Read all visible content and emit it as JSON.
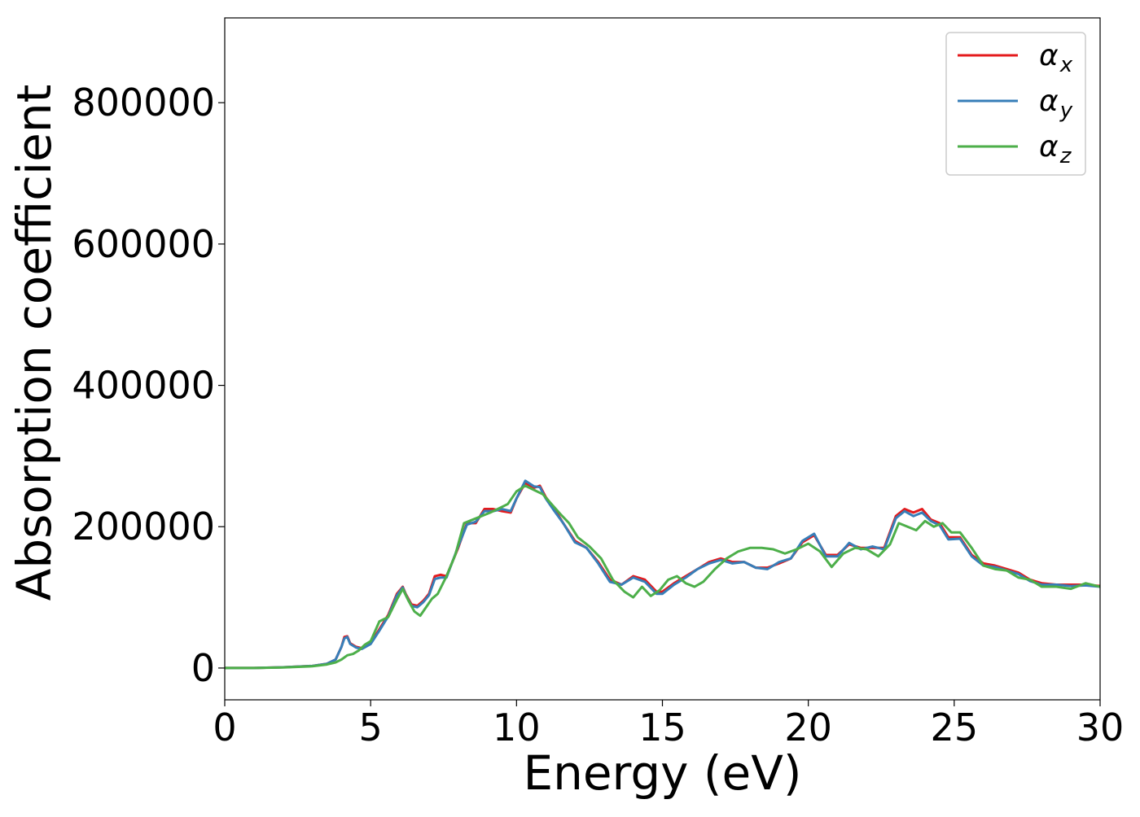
{
  "chart_data": {
    "type": "line",
    "title": "",
    "xlabel": "Energy (eV)",
    "ylabel": "Absorption coefficient",
    "xlim": [
      0,
      30
    ],
    "ylim": [
      -45000,
      920000
    ],
    "xticks": [
      0,
      5,
      10,
      15,
      20,
      25,
      30
    ],
    "xtick_labels": [
      "0",
      "5",
      "10",
      "15",
      "20",
      "25",
      "30"
    ],
    "yticks": [
      0,
      200000,
      400000,
      600000,
      800000
    ],
    "ytick_labels": [
      "0",
      "200000",
      "400000",
      "600000",
      "800000"
    ],
    "grid": false,
    "legend_position": "top-right",
    "series": [
      {
        "name": "α_x",
        "label_main": "α",
        "label_sub": "x",
        "color": "#e41a1c",
        "x": [
          0,
          1,
          2,
          3,
          3.5,
          3.8,
          4.0,
          4.1,
          4.2,
          4.3,
          4.5,
          4.7,
          5.0,
          5.3,
          5.6,
          5.9,
          6.1,
          6.2,
          6.4,
          6.6,
          6.8,
          7.0,
          7.2,
          7.4,
          7.6,
          7.8,
          8.0,
          8.3,
          8.6,
          8.9,
          9.2,
          9.5,
          9.8,
          10.0,
          10.3,
          10.6,
          10.8,
          11.0,
          11.3,
          11.6,
          12.0,
          12.4,
          12.8,
          13.2,
          13.6,
          14.0,
          14.4,
          14.8,
          15.0,
          15.4,
          15.8,
          16.2,
          16.6,
          17.0,
          17.4,
          17.8,
          18.2,
          18.6,
          19.0,
          19.4,
          19.8,
          20.2,
          20.6,
          21.0,
          21.4,
          21.8,
          22.2,
          22.6,
          23.0,
          23.3,
          23.6,
          23.9,
          24.2,
          24.5,
          24.8,
          25.2,
          25.6,
          26.0,
          26.4,
          26.8,
          27.2,
          27.6,
          28.0,
          28.5,
          29.0,
          29.5,
          30.0
        ],
        "y": [
          0,
          0,
          1000,
          3000,
          6000,
          12000,
          30000,
          44000,
          45000,
          35000,
          30000,
          28000,
          35000,
          55000,
          75000,
          105000,
          115000,
          105000,
          90000,
          88000,
          95000,
          105000,
          130000,
          132000,
          130000,
          150000,
          170000,
          205000,
          205000,
          225000,
          225000,
          222000,
          220000,
          240000,
          262000,
          255000,
          258000,
          242000,
          225000,
          205000,
          180000,
          170000,
          150000,
          125000,
          118000,
          130000,
          125000,
          108000,
          108000,
          120000,
          130000,
          140000,
          150000,
          155000,
          150000,
          150000,
          142000,
          142000,
          148000,
          155000,
          178000,
          188000,
          160000,
          160000,
          175000,
          170000,
          170000,
          170000,
          215000,
          225000,
          220000,
          225000,
          210000,
          205000,
          185000,
          185000,
          160000,
          148000,
          145000,
          140000,
          135000,
          125000,
          120000,
          118000,
          118000,
          118000,
          116000
        ]
      },
      {
        "name": "α_y",
        "label_main": "α",
        "label_sub": "y",
        "color": "#377eb8",
        "x": [
          0,
          1,
          2,
          3,
          3.5,
          3.8,
          4.0,
          4.1,
          4.2,
          4.3,
          4.5,
          4.7,
          5.0,
          5.3,
          5.6,
          5.9,
          6.1,
          6.2,
          6.4,
          6.6,
          6.8,
          7.0,
          7.2,
          7.4,
          7.6,
          7.8,
          8.0,
          8.3,
          8.6,
          8.9,
          9.2,
          9.5,
          9.8,
          10.0,
          10.3,
          10.6,
          10.8,
          11.0,
          11.3,
          11.6,
          12.0,
          12.4,
          12.8,
          13.2,
          13.6,
          14.0,
          14.4,
          14.8,
          15.0,
          15.4,
          15.8,
          16.2,
          16.6,
          17.0,
          17.4,
          17.8,
          18.2,
          18.6,
          19.0,
          19.4,
          19.8,
          20.2,
          20.6,
          21.0,
          21.4,
          21.8,
          22.2,
          22.6,
          23.0,
          23.3,
          23.6,
          23.9,
          24.2,
          24.5,
          24.8,
          25.2,
          25.6,
          26.0,
          26.4,
          26.8,
          27.2,
          27.6,
          28.0,
          28.5,
          29.0,
          29.5,
          30.0
        ],
        "y": [
          0,
          0,
          1000,
          3000,
          6000,
          12000,
          30000,
          42000,
          44000,
          34000,
          29000,
          27000,
          34000,
          53000,
          73000,
          103000,
          114000,
          104000,
          88000,
          86000,
          93000,
          103000,
          126000,
          128000,
          128000,
          150000,
          172000,
          203000,
          207000,
          222000,
          222000,
          225000,
          222000,
          240000,
          265000,
          257000,
          256000,
          240000,
          222000,
          205000,
          178000,
          170000,
          148000,
          122000,
          118000,
          128000,
          122000,
          105000,
          105000,
          118000,
          128000,
          140000,
          148000,
          153000,
          148000,
          150000,
          142000,
          140000,
          150000,
          155000,
          180000,
          190000,
          158000,
          158000,
          177000,
          168000,
          172000,
          168000,
          212000,
          222000,
          215000,
          220000,
          208000,
          202000,
          182000,
          183000,
          158000,
          145000,
          143000,
          138000,
          133000,
          123000,
          118000,
          118000,
          116000,
          117000,
          115000
        ]
      },
      {
        "name": "α_z",
        "label_main": "α",
        "label_sub": "z",
        "color": "#4daf4a",
        "x": [
          0,
          1,
          2,
          3,
          3.5,
          3.8,
          4.0,
          4.2,
          4.4,
          4.6,
          4.8,
          5.0,
          5.3,
          5.6,
          5.9,
          6.1,
          6.3,
          6.5,
          6.7,
          6.9,
          7.1,
          7.3,
          7.6,
          7.9,
          8.2,
          8.5,
          8.8,
          9.1,
          9.4,
          9.7,
          10.0,
          10.3,
          10.6,
          10.9,
          11.2,
          11.5,
          11.8,
          12.1,
          12.5,
          12.9,
          13.3,
          13.7,
          14.0,
          14.3,
          14.6,
          14.9,
          15.2,
          15.5,
          15.8,
          16.1,
          16.4,
          16.8,
          17.2,
          17.6,
          18.0,
          18.4,
          18.8,
          19.2,
          19.6,
          20.0,
          20.4,
          20.8,
          21.2,
          21.6,
          22.0,
          22.4,
          22.8,
          23.1,
          23.4,
          23.7,
          24.0,
          24.3,
          24.6,
          24.9,
          25.2,
          25.6,
          26.0,
          26.4,
          26.8,
          27.2,
          27.6,
          28.0,
          28.5,
          29.0,
          29.5,
          30.0
        ],
        "y": [
          0,
          0,
          800,
          2500,
          5000,
          8000,
          12000,
          18000,
          20000,
          25000,
          33000,
          38000,
          66000,
          72000,
          97000,
          112000,
          95000,
          80000,
          74000,
          86000,
          98000,
          105000,
          130000,
          160000,
          205000,
          210000,
          215000,
          220000,
          226000,
          232000,
          250000,
          258000,
          252000,
          246000,
          232000,
          218000,
          205000,
          185000,
          172000,
          155000,
          125000,
          108000,
          100000,
          115000,
          102000,
          110000,
          125000,
          130000,
          120000,
          115000,
          122000,
          140000,
          155000,
          165000,
          170000,
          170000,
          168000,
          162000,
          168000,
          176000,
          165000,
          143000,
          162000,
          170000,
          168000,
          158000,
          175000,
          205000,
          200000,
          195000,
          208000,
          200000,
          205000,
          192000,
          192000,
          170000,
          145000,
          140000,
          138000,
          128000,
          125000,
          115000,
          115000,
          112000,
          120000,
          115000
        ]
      }
    ]
  }
}
